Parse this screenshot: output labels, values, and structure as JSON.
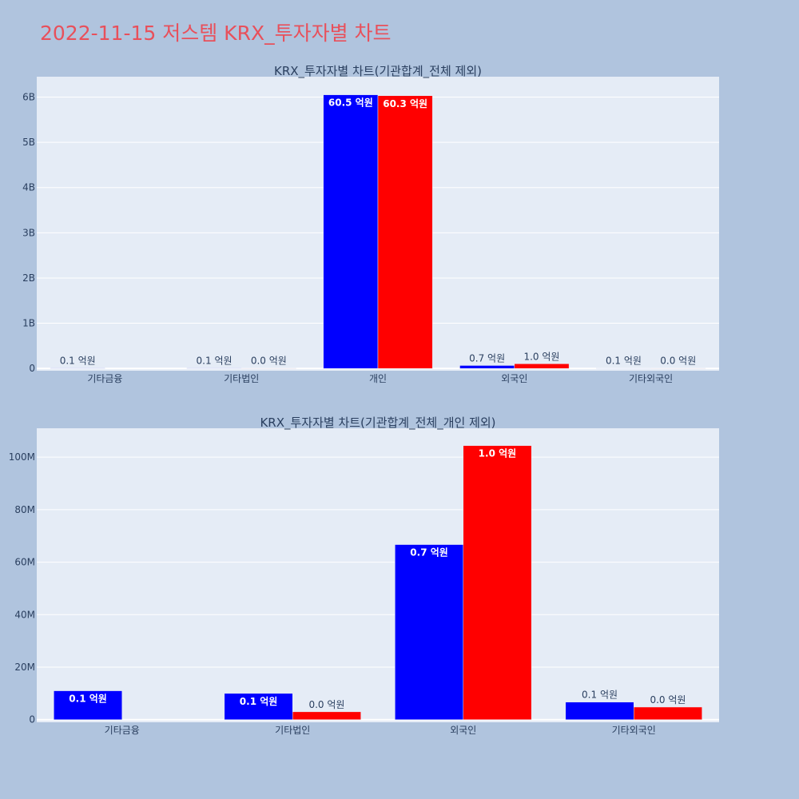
{
  "page": {
    "title": "2022-11-15 저스템 KRX_투자자별 차트",
    "background": "#b0c4de",
    "title_color": "#e8505b"
  },
  "chart_data": [
    {
      "type": "bar",
      "title": "KRX_투자자별 차트(기관합계_전체 제외)",
      "categories": [
        "기타금융",
        "기타법인",
        "개인",
        "외국인",
        "기타외국인"
      ],
      "series": [
        {
          "color": "#0000ff",
          "values": [
            10000000,
            10000000,
            6050000000,
            66000000,
            6000000
          ],
          "labels": [
            "0.1 억원",
            "0.1 억원",
            "60.5 억원",
            "0.7 억원",
            "0.1 억원"
          ]
        },
        {
          "color": "#ff0000",
          "values": [
            null,
            2000000,
            6030000000,
            104000000,
            4000000
          ],
          "labels": [
            null,
            "0.0 억원",
            "60.3 억원",
            "1.0 억원",
            "0.0 억원"
          ]
        }
      ],
      "ylim": [
        -50000000,
        6450000000
      ],
      "yticks": [
        0,
        1000000000,
        2000000000,
        3000000000,
        4000000000,
        5000000000,
        6000000000
      ],
      "ytick_labels": [
        "0",
        "1B",
        "2B",
        "3B",
        "4B",
        "5B",
        "6B"
      ],
      "plot_background": "#e5ecf6",
      "grid": true
    },
    {
      "type": "bar",
      "title": "KRX_투자자별 차트(기관합계_전체_개인 제외)",
      "categories": [
        "기타금융",
        "기타법인",
        "외국인",
        "기타외국인"
      ],
      "series": [
        {
          "color": "#0000ff",
          "values": [
            11000000,
            10000000,
            66700000,
            6700000
          ],
          "labels": [
            "0.1 억원",
            "0.1 억원",
            "0.7 억원",
            "0.1 억원"
          ]
        },
        {
          "color": "#ff0000",
          "values": [
            null,
            3000000,
            104400000,
            4800000
          ],
          "labels": [
            null,
            "0.0 억원",
            "1.0 억원",
            "0.0 억원"
          ]
        }
      ],
      "ylim": [
        -1000000,
        111000000
      ],
      "yticks": [
        0,
        20000000,
        40000000,
        60000000,
        80000000,
        100000000
      ],
      "ytick_labels": [
        "0",
        "20M",
        "40M",
        "60M",
        "80M",
        "100M"
      ],
      "plot_background": "#e5ecf6",
      "grid": true
    }
  ]
}
